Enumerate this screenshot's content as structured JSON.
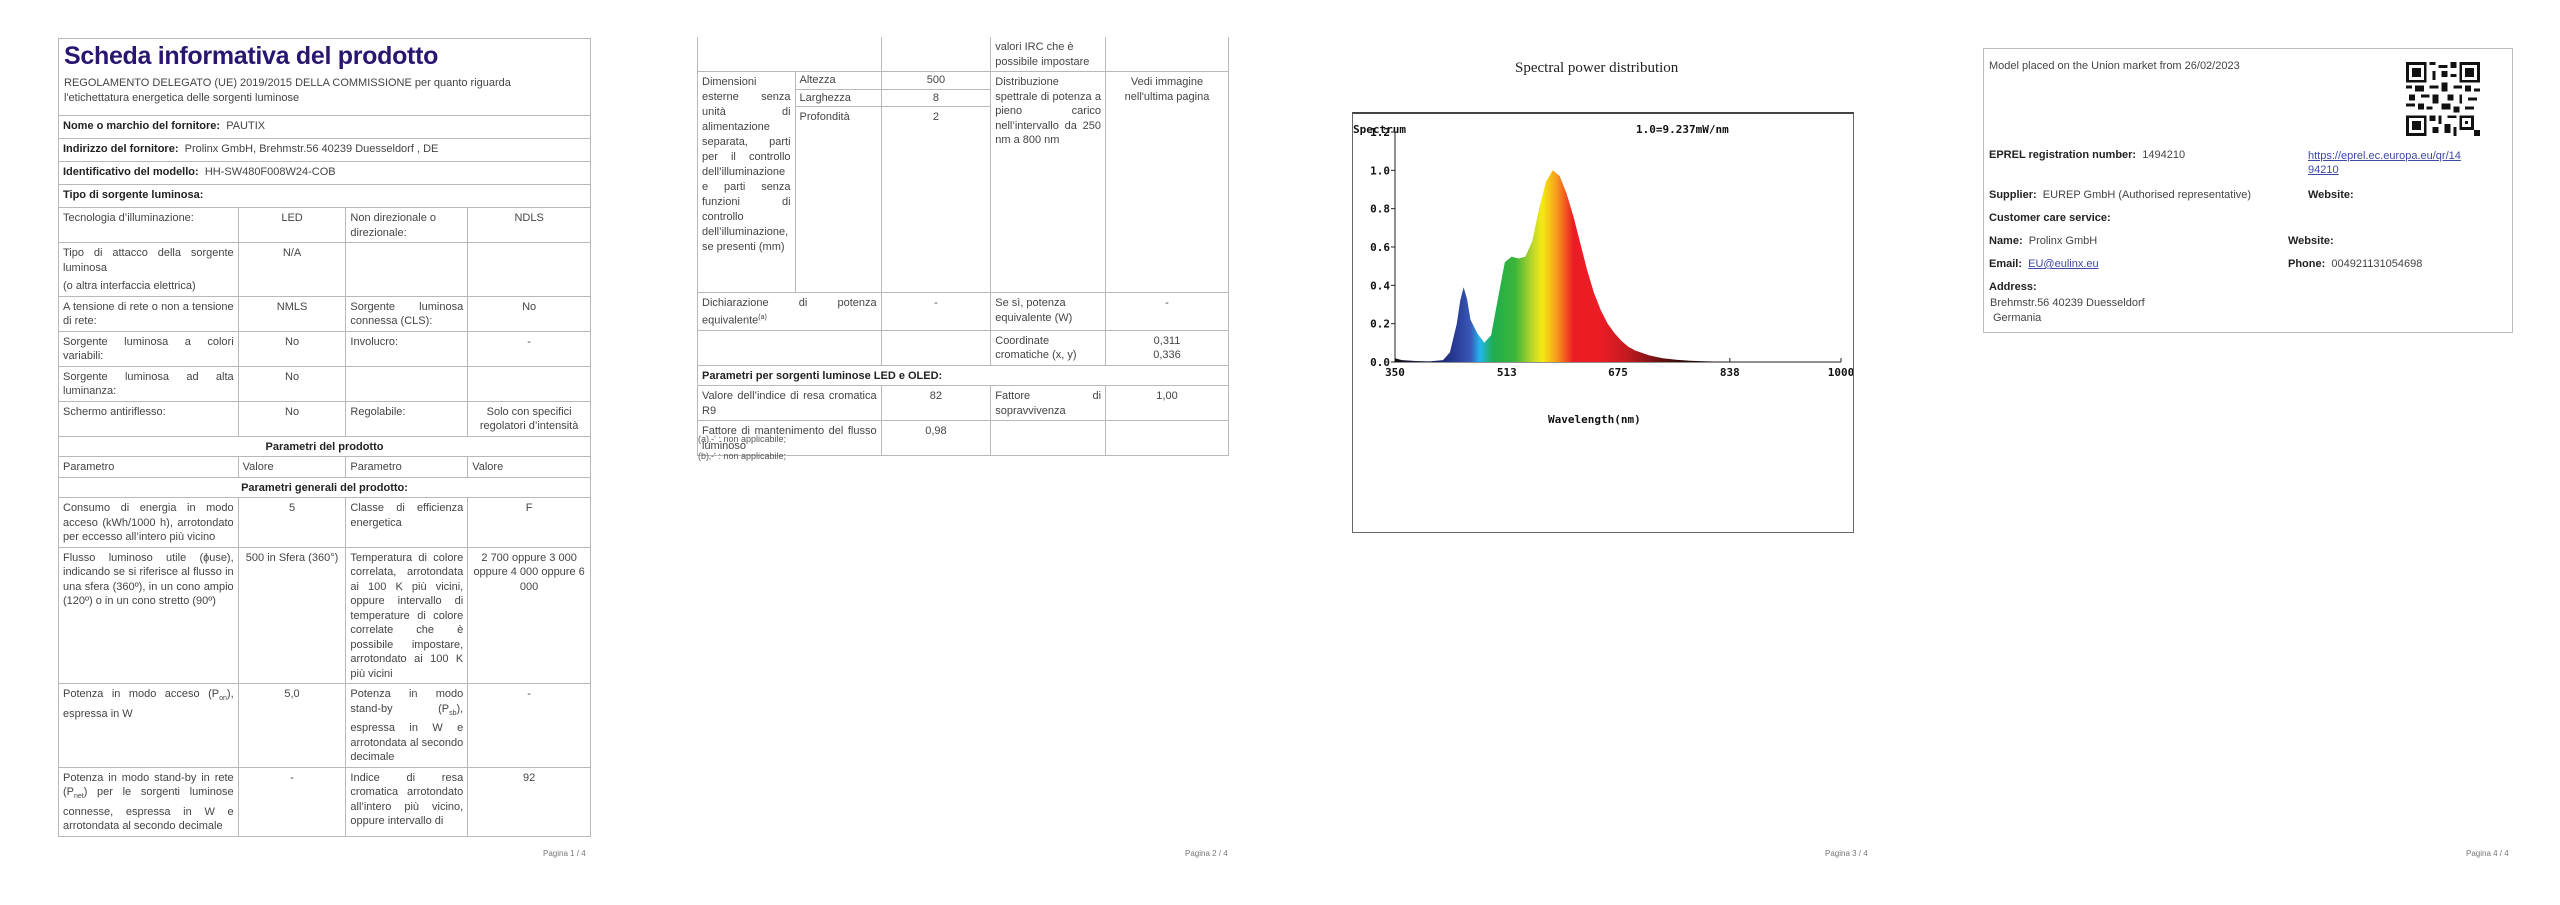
{
  "pages": [
    {
      "title": "Scheda informativa del prodotto",
      "regulation": "REGOLAMENTO DELEGATO (UE) 2019/2015 DELLA COMMISSIONE per quanto riguarda l'etichettatura energetica delle sorgenti luminose",
      "supplier_name_label": "Nome o marchio del fornitore:",
      "supplier_name": "PAUTIX",
      "supplier_address_label": "Indirizzo del fornitore:",
      "supplier_address": "Prolinx GmbH, Brehmstr.56 40239 Duesseldorf , DE",
      "model_label": "Identificativo del modello:",
      "model": "HH-SW480F008W24-COB",
      "source_type_label": "Tipo di sorgente luminosa:",
      "rows": {
        "tech_label": "Tecnologia d’illuminazione:",
        "tech_value": "LED",
        "dir_label": "Non direzionale o direzionale:",
        "dir_value": "NDLS",
        "cap_label": "Tipo di attacco della sorgente luminosa",
        "cap_label2": "(o altra interfaccia elettrica)",
        "cap_value": "N/A",
        "mains_label": "A tensione di rete o non a tensione di rete:",
        "mains_value": "NMLS",
        "cls_label": "Sorgente luminosa connessa (CLS):",
        "cls_value": "No",
        "color_label": "Sorgente luminosa a colori variabili:",
        "color_value": "No",
        "env_label": "Involucro:",
        "env_value": "-",
        "hl_label": "Sorgente luminosa ad alta luminanza:",
        "hl_value": "No",
        "glare_label": "Schermo antiriflesso:",
        "glare_value": "No",
        "dim_label": "Regolabile:",
        "dim_value": "Solo con specifici regolatori d’intensità"
      },
      "section_product": "Parametri del prodotto",
      "col_param": "Parametro",
      "col_value": "Valore",
      "section_general": "Parametri generali del prodotto:",
      "params": {
        "energy_label": "Consumo di energia in modo acceso (kWh/1000 h), arrotondato per eccesso all’intero più vicino",
        "energy_value": "5",
        "class_label": "Classe di efficienza energetica",
        "class_value": "F",
        "flux_label": "Flusso luminoso utile (ɸuse), indicando se si riferisce al flusso in una sfera (360º), in un cono ampio (120º) o in un cono stretto (90º)",
        "flux_value": "500 in Sfera (360°)",
        "cct_label": "Temperatura di colore correlata, arrotondata ai 100 K più vicini, oppure intervallo di temperature di colore correlate che è possibile impostare, arrotondato ai 100 K più vicini",
        "cct_value": "2 700 oppure 3 000 oppure 4 000 oppure 6 000",
        "pon_label_a": "Potenza in modo acceso (P",
        "pon_sub": "on",
        "pon_label_b": "), espressa in W",
        "pon_value": "5,0",
        "psb_label_a": "Potenza in modo stand-by (P",
        "psb_sub": "sb",
        "psb_label_b": "), espressa in W e arrotondata al secondo decimale",
        "psb_value": "-",
        "pnet_label_a": "Potenza in modo stand-by in rete (P",
        "pnet_sub": "net",
        "pnet_label_b": ") per le sorgenti luminose connesse, espressa in W e arrotondata al secondo decimale",
        "pnet_value": "-",
        "cri_label": "Indice di resa cromatica arrotondato all’intero più vicino, oppure intervallo di",
        "cri_value": "92"
      },
      "footer": "Pagina 1 / 4"
    },
    {
      "cri_cont": "valori IRC che è possibile impostare",
      "dims_label": "Dimensioni esterne senza unità di alimentazione separata, parti per il controllo dell’illuminazione e parti senza funzioni di controllo dell’illuminazione, se presenti (mm)",
      "dims": [
        {
          "label": "Altezza",
          "value": "500"
        },
        {
          "label": "Larghezza",
          "value": "8"
        },
        {
          "label": "Profondità",
          "value": "2"
        }
      ],
      "spd_label": "Distribuzione spettrale di potenza a pieno carico nell’intervallo da 250 nm a 800 nm",
      "spd_value": "Vedi immagine nell'ultima pagina",
      "eq_label": "Dichiarazione di potenza equivalente",
      "eq_sup": "(a)",
      "eq_value": "-",
      "eqw_label": "Se sì, potenza equivalente (W)",
      "eqw_value": "-",
      "chroma_label": "Coordinate cromatiche (x, y)",
      "chroma_x": "0,311",
      "chroma_y": "0,336",
      "led_section": "Parametri per sorgenti luminose LED e OLED:",
      "r9_label": "Valore dell’indice di resa cromatica R9",
      "r9_value": "82",
      "surv_label": "Fattore di sopravvivenza",
      "surv_value": "1,00",
      "maint_label": "Fattore di mantenimento del flusso luminoso",
      "maint_value": "0,98",
      "note_a": "(a)‚-‘ : non applicabile;",
      "note_b": "(b)‚-‘ : non applicabile;",
      "footer": "Pagina 2 / 4"
    },
    {
      "footer": "Pagina 3 / 4"
    },
    {
      "market": "Model placed on the Union market from 26/02/2023",
      "eprel_label": "EPREL registration number:",
      "eprel_value": "1494210",
      "eprel_link_1": "https://eprel.ec.europa.eu/qr/14",
      "eprel_link_2": "94210",
      "supplier_label": "Supplier:",
      "supplier_value": "EUREP GmbH (Authorised representative)",
      "website_label": "Website:",
      "care_label": "Customer care service:",
      "name_label": "Name:",
      "name_value": "Prolinx GmbH",
      "care_website_label": "Website:",
      "email_label": "Email:",
      "email_value": "EU@eulinx.eu",
      "phone_label": "Phone:",
      "phone_value": "004921131054698",
      "address_label": "Address:",
      "address_1": "Brehmstr.56 40239 Duesseldorf",
      "address_2": "Germania",
      "footer": "Pagina 4 / 4"
    }
  ],
  "chart_data": {
    "type": "area",
    "title": "Spectral power distribution",
    "subtitle": "Spectrum",
    "annotation": "1.0=9.237mW/nm",
    "xlabel": "Wavelength(nm)",
    "ylabel": "",
    "xlim": [
      350,
      1000
    ],
    "ylim": [
      0,
      1.2
    ],
    "xticks": [
      350,
      513,
      675,
      838,
      1000
    ],
    "yticks": [
      "0.0",
      "0.2",
      "0.4",
      "0.6",
      "0.8",
      "1.0",
      "1.2"
    ],
    "grid": false,
    "x": [
      350,
      360,
      380,
      400,
      420,
      430,
      440,
      445,
      450,
      455,
      460,
      470,
      480,
      490,
      500,
      510,
      520,
      530,
      540,
      550,
      560,
      570,
      580,
      590,
      600,
      610,
      620,
      630,
      640,
      650,
      660,
      670,
      680,
      690,
      700,
      720,
      740,
      760,
      780,
      800,
      820,
      840,
      860
    ],
    "values": [
      0.02,
      0.01,
      0.005,
      0.003,
      0.01,
      0.05,
      0.2,
      0.32,
      0.39,
      0.33,
      0.22,
      0.15,
      0.1,
      0.14,
      0.33,
      0.52,
      0.55,
      0.54,
      0.55,
      0.63,
      0.8,
      0.94,
      1.0,
      0.97,
      0.88,
      0.76,
      0.62,
      0.48,
      0.36,
      0.27,
      0.2,
      0.15,
      0.11,
      0.08,
      0.06,
      0.035,
      0.02,
      0.012,
      0.007,
      0.004,
      0.002,
      0.001,
      0.0
    ]
  }
}
